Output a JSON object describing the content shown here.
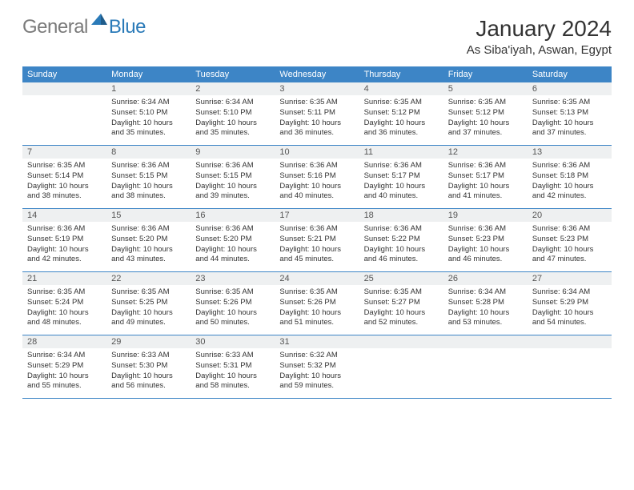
{
  "logo": {
    "word1": "General",
    "word2": "Blue"
  },
  "title": "January 2024",
  "location": "As Siba'iyah, Aswan, Egypt",
  "colors": {
    "header_bg": "#3d85c6",
    "header_text": "#ffffff",
    "daynum_bg": "#eef0f1",
    "row_border": "#3d85c6",
    "logo_gray": "#7a7a7a",
    "logo_blue": "#2a7ab8",
    "text": "#333333",
    "background": "#ffffff"
  },
  "day_headers": [
    "Sunday",
    "Monday",
    "Tuesday",
    "Wednesday",
    "Thursday",
    "Friday",
    "Saturday"
  ],
  "weeks": [
    [
      {
        "n": "",
        "lines": []
      },
      {
        "n": "1",
        "lines": [
          "Sunrise: 6:34 AM",
          "Sunset: 5:10 PM",
          "Daylight: 10 hours and 35 minutes."
        ]
      },
      {
        "n": "2",
        "lines": [
          "Sunrise: 6:34 AM",
          "Sunset: 5:10 PM",
          "Daylight: 10 hours and 35 minutes."
        ]
      },
      {
        "n": "3",
        "lines": [
          "Sunrise: 6:35 AM",
          "Sunset: 5:11 PM",
          "Daylight: 10 hours and 36 minutes."
        ]
      },
      {
        "n": "4",
        "lines": [
          "Sunrise: 6:35 AM",
          "Sunset: 5:12 PM",
          "Daylight: 10 hours and 36 minutes."
        ]
      },
      {
        "n": "5",
        "lines": [
          "Sunrise: 6:35 AM",
          "Sunset: 5:12 PM",
          "Daylight: 10 hours and 37 minutes."
        ]
      },
      {
        "n": "6",
        "lines": [
          "Sunrise: 6:35 AM",
          "Sunset: 5:13 PM",
          "Daylight: 10 hours and 37 minutes."
        ]
      }
    ],
    [
      {
        "n": "7",
        "lines": [
          "Sunrise: 6:35 AM",
          "Sunset: 5:14 PM",
          "Daylight: 10 hours and 38 minutes."
        ]
      },
      {
        "n": "8",
        "lines": [
          "Sunrise: 6:36 AM",
          "Sunset: 5:15 PM",
          "Daylight: 10 hours and 38 minutes."
        ]
      },
      {
        "n": "9",
        "lines": [
          "Sunrise: 6:36 AM",
          "Sunset: 5:15 PM",
          "Daylight: 10 hours and 39 minutes."
        ]
      },
      {
        "n": "10",
        "lines": [
          "Sunrise: 6:36 AM",
          "Sunset: 5:16 PM",
          "Daylight: 10 hours and 40 minutes."
        ]
      },
      {
        "n": "11",
        "lines": [
          "Sunrise: 6:36 AM",
          "Sunset: 5:17 PM",
          "Daylight: 10 hours and 40 minutes."
        ]
      },
      {
        "n": "12",
        "lines": [
          "Sunrise: 6:36 AM",
          "Sunset: 5:17 PM",
          "Daylight: 10 hours and 41 minutes."
        ]
      },
      {
        "n": "13",
        "lines": [
          "Sunrise: 6:36 AM",
          "Sunset: 5:18 PM",
          "Daylight: 10 hours and 42 minutes."
        ]
      }
    ],
    [
      {
        "n": "14",
        "lines": [
          "Sunrise: 6:36 AM",
          "Sunset: 5:19 PM",
          "Daylight: 10 hours and 42 minutes."
        ]
      },
      {
        "n": "15",
        "lines": [
          "Sunrise: 6:36 AM",
          "Sunset: 5:20 PM",
          "Daylight: 10 hours and 43 minutes."
        ]
      },
      {
        "n": "16",
        "lines": [
          "Sunrise: 6:36 AM",
          "Sunset: 5:20 PM",
          "Daylight: 10 hours and 44 minutes."
        ]
      },
      {
        "n": "17",
        "lines": [
          "Sunrise: 6:36 AM",
          "Sunset: 5:21 PM",
          "Daylight: 10 hours and 45 minutes."
        ]
      },
      {
        "n": "18",
        "lines": [
          "Sunrise: 6:36 AM",
          "Sunset: 5:22 PM",
          "Daylight: 10 hours and 46 minutes."
        ]
      },
      {
        "n": "19",
        "lines": [
          "Sunrise: 6:36 AM",
          "Sunset: 5:23 PM",
          "Daylight: 10 hours and 46 minutes."
        ]
      },
      {
        "n": "20",
        "lines": [
          "Sunrise: 6:36 AM",
          "Sunset: 5:23 PM",
          "Daylight: 10 hours and 47 minutes."
        ]
      }
    ],
    [
      {
        "n": "21",
        "lines": [
          "Sunrise: 6:35 AM",
          "Sunset: 5:24 PM",
          "Daylight: 10 hours and 48 minutes."
        ]
      },
      {
        "n": "22",
        "lines": [
          "Sunrise: 6:35 AM",
          "Sunset: 5:25 PM",
          "Daylight: 10 hours and 49 minutes."
        ]
      },
      {
        "n": "23",
        "lines": [
          "Sunrise: 6:35 AM",
          "Sunset: 5:26 PM",
          "Daylight: 10 hours and 50 minutes."
        ]
      },
      {
        "n": "24",
        "lines": [
          "Sunrise: 6:35 AM",
          "Sunset: 5:26 PM",
          "Daylight: 10 hours and 51 minutes."
        ]
      },
      {
        "n": "25",
        "lines": [
          "Sunrise: 6:35 AM",
          "Sunset: 5:27 PM",
          "Daylight: 10 hours and 52 minutes."
        ]
      },
      {
        "n": "26",
        "lines": [
          "Sunrise: 6:34 AM",
          "Sunset: 5:28 PM",
          "Daylight: 10 hours and 53 minutes."
        ]
      },
      {
        "n": "27",
        "lines": [
          "Sunrise: 6:34 AM",
          "Sunset: 5:29 PM",
          "Daylight: 10 hours and 54 minutes."
        ]
      }
    ],
    [
      {
        "n": "28",
        "lines": [
          "Sunrise: 6:34 AM",
          "Sunset: 5:29 PM",
          "Daylight: 10 hours and 55 minutes."
        ]
      },
      {
        "n": "29",
        "lines": [
          "Sunrise: 6:33 AM",
          "Sunset: 5:30 PM",
          "Daylight: 10 hours and 56 minutes."
        ]
      },
      {
        "n": "30",
        "lines": [
          "Sunrise: 6:33 AM",
          "Sunset: 5:31 PM",
          "Daylight: 10 hours and 58 minutes."
        ]
      },
      {
        "n": "31",
        "lines": [
          "Sunrise: 6:32 AM",
          "Sunset: 5:32 PM",
          "Daylight: 10 hours and 59 minutes."
        ]
      },
      {
        "n": "",
        "lines": []
      },
      {
        "n": "",
        "lines": []
      },
      {
        "n": "",
        "lines": []
      }
    ]
  ]
}
